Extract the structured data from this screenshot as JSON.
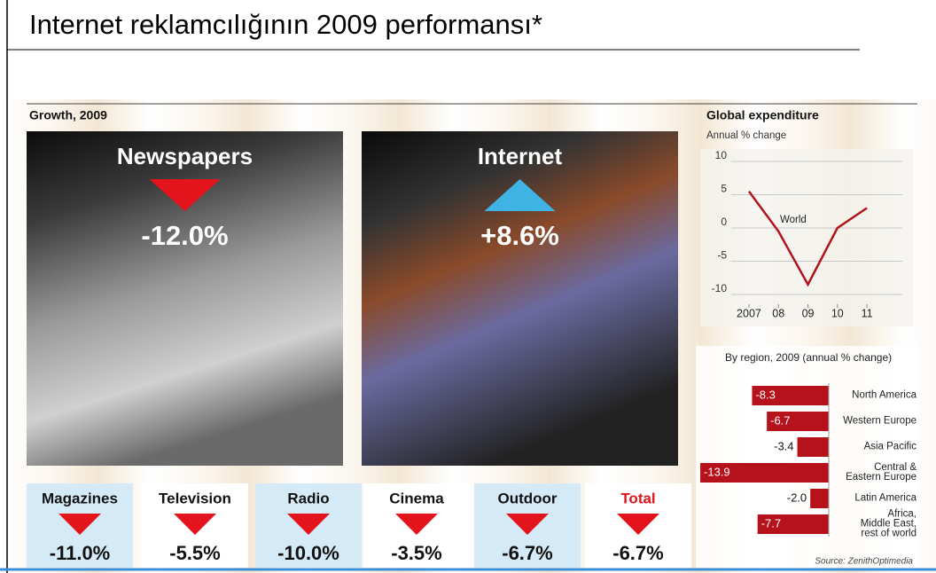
{
  "title": "Internet reklamcılığının 2009 performansı*",
  "chart_data": [
    {
      "type": "tiles",
      "title": "Growth, 2009",
      "categories": [
        "Newspapers",
        "Internet",
        "Magazines",
        "Television",
        "Radio",
        "Cinema",
        "Outdoor",
        "Total"
      ],
      "values": [
        -12.0,
        8.6,
        -11.0,
        -5.5,
        -10.0,
        -3.5,
        -6.7,
        -6.7
      ],
      "value_labels": [
        "-12.0%",
        "+8.6%",
        "-11.0%",
        "-5.5%",
        "-10.0%",
        "-3.5%",
        "-6.7%",
        "-6.7%"
      ],
      "down_color": "#e3141c",
      "up_color": "#3fb3e3"
    },
    {
      "type": "line",
      "title": "Global expenditure",
      "subtitle": "Annual % change",
      "x": [
        2007,
        2008,
        2009,
        2010,
        2011
      ],
      "series": [
        {
          "name": "World",
          "color": "#b0141c",
          "values": [
            5.5,
            -0.5,
            -8.5,
            0,
            3
          ]
        }
      ],
      "xlim": [
        2006.4,
        2012.2
      ],
      "ylim": [
        -12,
        12
      ],
      "xticks": [
        2007,
        {
          "value": 2008,
          "label": "08"
        },
        {
          "value": 2009,
          "label": "09"
        },
        {
          "value": 2010,
          "label": "10"
        },
        {
          "value": 2011,
          "label": "11"
        }
      ],
      "yticks": [
        -10,
        -5,
        0,
        5,
        10
      ],
      "grid": true
    },
    {
      "type": "hbar",
      "title": "By region, 2009 (annual % change)",
      "categories": [
        "North America",
        "Western Europe",
        "Asia Pacific",
        "Central &\nEastern Europe",
        "Latin America",
        "Africa,\nMiddle East,\nrest of world"
      ],
      "values": [
        -8.3,
        -6.7,
        -3.4,
        -13.9,
        -2.0,
        -7.7
      ],
      "value_labels": [
        "-8.3",
        "-6.7",
        "-3.4",
        "-13.9",
        "-2.0",
        "-7.7"
      ],
      "color": "#b5121b",
      "xlim": [
        -14,
        0
      ],
      "source": "Source: ZenithOptimedia"
    }
  ]
}
